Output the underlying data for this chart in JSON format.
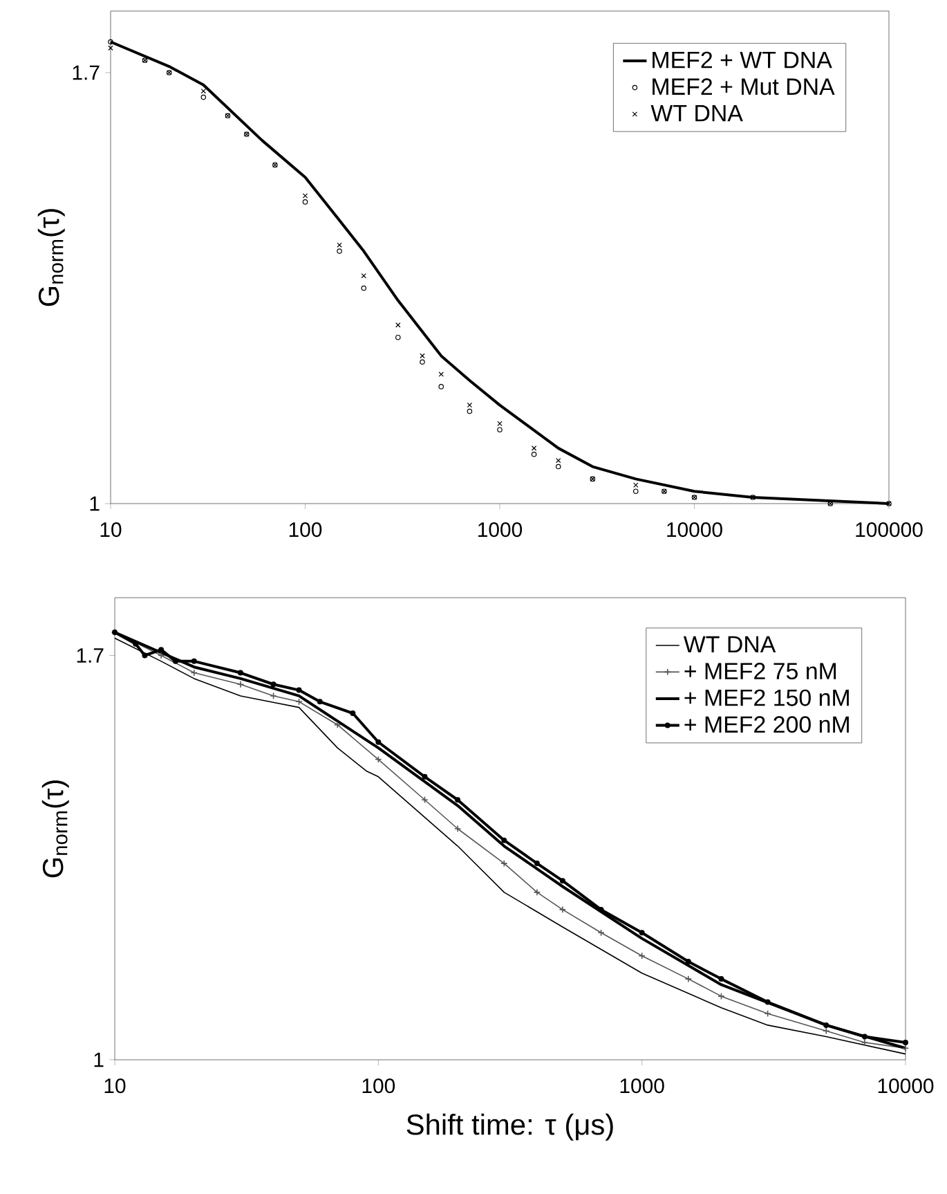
{
  "chart_data": [
    {
      "type": "line",
      "ylabel": "G$_{norm}$(τ)",
      "log": "x",
      "xlim": [
        10,
        100000
      ],
      "ylim": [
        1,
        1.8
      ],
      "xticks": [
        10,
        100,
        1000,
        10000,
        100000
      ],
      "yticks": [
        1,
        1.7
      ],
      "grid": false,
      "legend": "top right",
      "series": [
        {
          "name": "MEF2 + WT DNA",
          "marker": "none",
          "color": "#000000",
          "x": [
            10,
            20,
            30,
            60,
            100,
            150,
            200,
            300,
            500,
            700,
            1000,
            2000,
            3000,
            5000,
            10000,
            20000,
            100000
          ],
          "values": [
            1.75,
            1.71,
            1.68,
            1.59,
            1.53,
            1.46,
            1.41,
            1.33,
            1.24,
            1.2,
            1.16,
            1.09,
            1.06,
            1.04,
            1.02,
            1.01,
            1.0
          ]
        },
        {
          "name": "MEF2 + Mut DNA",
          "type": "scatter",
          "marker": "circle",
          "color": "#000000",
          "x": [
            10,
            15,
            20,
            30,
            40,
            50,
            70,
            100,
            150,
            200,
            300,
            400,
            500,
            700,
            1000,
            1500,
            2000,
            3000,
            5000,
            7000,
            10000,
            20000,
            50000,
            100000
          ],
          "values": [
            1.75,
            1.72,
            1.7,
            1.66,
            1.63,
            1.6,
            1.55,
            1.49,
            1.41,
            1.35,
            1.27,
            1.23,
            1.19,
            1.15,
            1.12,
            1.08,
            1.06,
            1.04,
            1.02,
            1.02,
            1.01,
            1.01,
            1.0,
            1.0
          ]
        },
        {
          "name": "WT DNA",
          "type": "scatter",
          "marker": "cross",
          "color": "#000000",
          "x": [
            10,
            15,
            20,
            30,
            40,
            50,
            70,
            100,
            150,
            200,
            300,
            400,
            500,
            700,
            1000,
            1500,
            2000,
            3000,
            5000,
            7000,
            10000,
            20000,
            50000,
            100000
          ],
          "values": [
            1.74,
            1.72,
            1.7,
            1.67,
            1.63,
            1.6,
            1.55,
            1.5,
            1.42,
            1.37,
            1.29,
            1.24,
            1.21,
            1.16,
            1.13,
            1.09,
            1.07,
            1.04,
            1.03,
            1.02,
            1.01,
            1.01,
            1.0,
            1.0
          ]
        }
      ]
    },
    {
      "type": "line",
      "xlabel": "Shift time: τ (μs)",
      "ylabel": "G$_{norm}$(τ)",
      "log": "x",
      "xlim": [
        10,
        10000
      ],
      "ylim": [
        1,
        1.8
      ],
      "xticks": [
        10,
        100,
        1000,
        10000
      ],
      "yticks": [
        1,
        1.7
      ],
      "grid": false,
      "legend": "top right",
      "series": [
        {
          "name": "WT DNA",
          "marker": "none",
          "color": "#000000",
          "x": [
            10,
            15,
            20,
            30,
            50,
            70,
            90,
            100,
            200,
            300,
            500,
            1000,
            2000,
            3000,
            5000,
            10000
          ],
          "values": [
            1.73,
            1.69,
            1.66,
            1.63,
            1.61,
            1.54,
            1.5,
            1.49,
            1.37,
            1.29,
            1.23,
            1.15,
            1.09,
            1.06,
            1.04,
            1.01
          ]
        },
        {
          "name": "+ MEF2 75 nM",
          "marker": "cross",
          "color": "#555555",
          "x": [
            10,
            15,
            20,
            30,
            40,
            50,
            70,
            100,
            150,
            200,
            300,
            400,
            500,
            700,
            1000,
            1500,
            2000,
            3000,
            5000,
            7000,
            10000
          ],
          "values": [
            1.74,
            1.7,
            1.67,
            1.65,
            1.63,
            1.62,
            1.58,
            1.52,
            1.45,
            1.4,
            1.34,
            1.29,
            1.26,
            1.22,
            1.18,
            1.14,
            1.11,
            1.08,
            1.05,
            1.03,
            1.02
          ]
        },
        {
          "name": "+ MEF2 150 nM",
          "marker": "none",
          "color": "#000000",
          "x": [
            10,
            20,
            30,
            50,
            100,
            200,
            300,
            500,
            1000,
            2000,
            5000,
            10000
          ],
          "values": [
            1.74,
            1.68,
            1.66,
            1.63,
            1.54,
            1.44,
            1.37,
            1.3,
            1.21,
            1.13,
            1.06,
            1.02
          ]
        },
        {
          "name": "+ MEF2 200 nM",
          "marker": "circle",
          "color": "#000000",
          "x": [
            10,
            12,
            13,
            15,
            17,
            20,
            30,
            40,
            50,
            60,
            80,
            100,
            150,
            200,
            300,
            400,
            500,
            700,
            1000,
            1500,
            2000,
            3000,
            5000,
            7000,
            10000
          ],
          "values": [
            1.74,
            1.72,
            1.7,
            1.71,
            1.69,
            1.69,
            1.67,
            1.65,
            1.64,
            1.62,
            1.6,
            1.55,
            1.49,
            1.45,
            1.38,
            1.34,
            1.31,
            1.26,
            1.22,
            1.17,
            1.14,
            1.1,
            1.06,
            1.04,
            1.03
          ]
        }
      ]
    }
  ]
}
